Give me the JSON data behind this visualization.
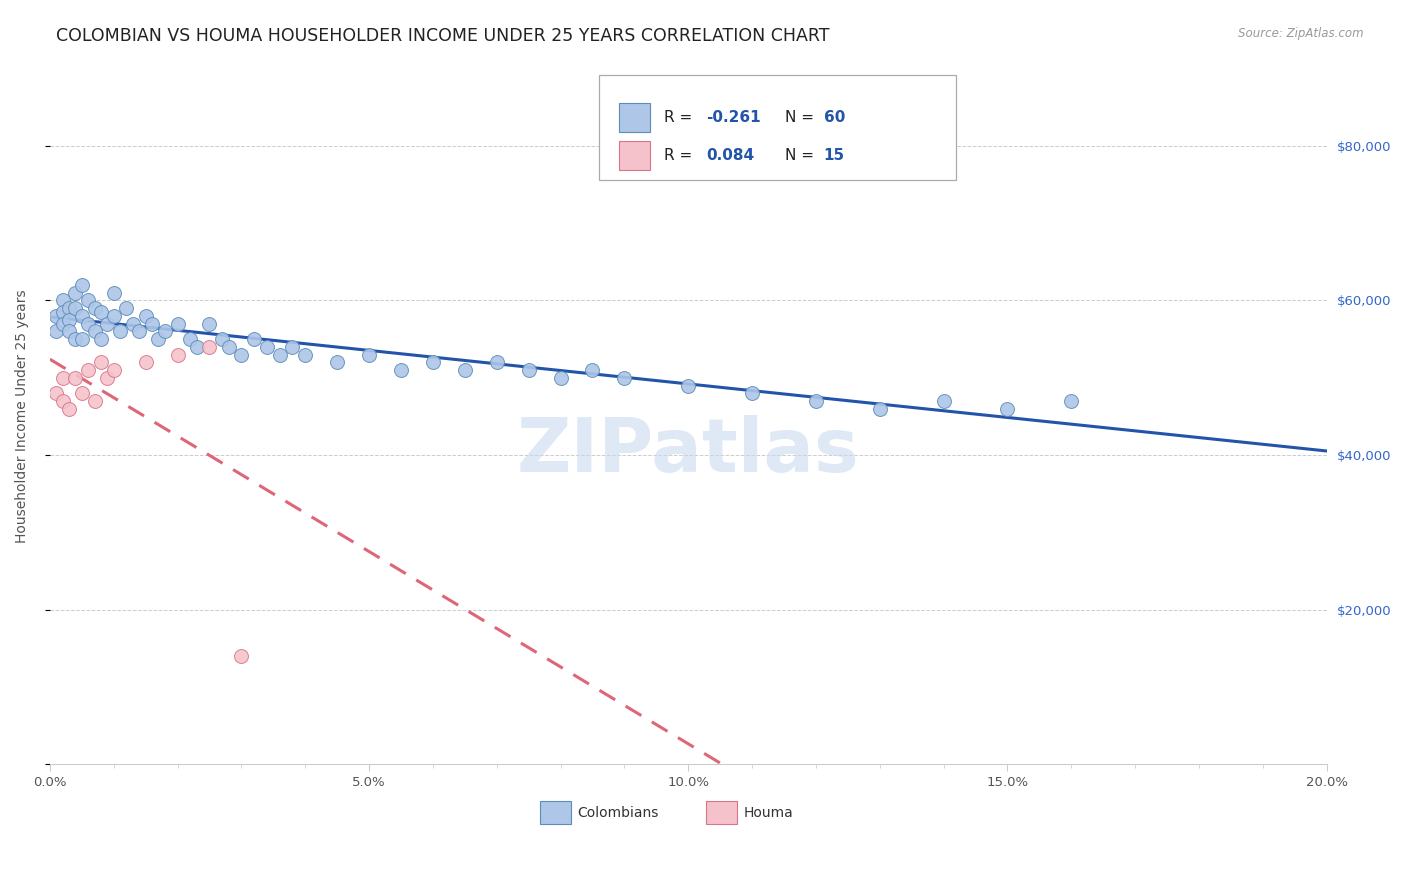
{
  "title": "COLOMBIAN VS HOUMA HOUSEHOLDER INCOME UNDER 25 YEARS CORRELATION CHART",
  "source": "Source: ZipAtlas.com",
  "ylabel": "Householder Income Under 25 years",
  "xlim": [
    0.0,
    0.2
  ],
  "ylim": [
    0,
    90000
  ],
  "yticks": [
    0,
    20000,
    40000,
    60000,
    80000
  ],
  "ytick_labels_right": [
    "",
    "$20,000",
    "$40,000",
    "$60,000",
    "$80,000"
  ],
  "xtick_labels": [
    "0.0%",
    "",
    "",
    "",
    "",
    "5.0%",
    "",
    "",
    "",
    "",
    "10.0%",
    "",
    "",
    "",
    "",
    "15.0%",
    "",
    "",
    "",
    "",
    "20.0%"
  ],
  "xticks": [
    0.0,
    0.01,
    0.02,
    0.03,
    0.04,
    0.05,
    0.06,
    0.07,
    0.08,
    0.09,
    0.1,
    0.11,
    0.12,
    0.13,
    0.14,
    0.15,
    0.16,
    0.17,
    0.18,
    0.19,
    0.2
  ],
  "xtick_major": [
    0.0,
    0.05,
    0.1,
    0.15,
    0.2
  ],
  "xtick_major_labels": [
    "0.0%",
    "5.0%",
    "10.0%",
    "15.0%",
    "20.0%"
  ],
  "legend_r_colombians": "-0.261",
  "legend_n_colombians": "60",
  "legend_r_houma": "0.084",
  "legend_n_houma": "15",
  "colombian_color": "#aec6e8",
  "colombian_edge_color": "#5b8db8",
  "houma_color": "#f5c2cb",
  "houma_edge_color": "#d9748a",
  "trend_colombian_color": "#2255aa",
  "trend_houma_color": "#dd6677",
  "background_color": "#ffffff",
  "grid_color": "#cccccc",
  "watermark_color": "#c5d8ee",
  "colombian_x": [
    0.001,
    0.001,
    0.002,
    0.002,
    0.002,
    0.003,
    0.003,
    0.003,
    0.004,
    0.004,
    0.004,
    0.005,
    0.005,
    0.005,
    0.006,
    0.006,
    0.007,
    0.007,
    0.008,
    0.008,
    0.009,
    0.01,
    0.01,
    0.011,
    0.012,
    0.013,
    0.014,
    0.015,
    0.016,
    0.017,
    0.018,
    0.02,
    0.022,
    0.023,
    0.025,
    0.027,
    0.028,
    0.03,
    0.032,
    0.034,
    0.036,
    0.038,
    0.04,
    0.045,
    0.05,
    0.055,
    0.06,
    0.065,
    0.07,
    0.075,
    0.08,
    0.085,
    0.09,
    0.1,
    0.11,
    0.12,
    0.13,
    0.14,
    0.15,
    0.16
  ],
  "colombian_y": [
    58000,
    56000,
    60000,
    58500,
    57000,
    59000,
    57500,
    56000,
    61000,
    59000,
    55000,
    62000,
    58000,
    55000,
    60000,
    57000,
    59000,
    56000,
    58500,
    55000,
    57000,
    61000,
    58000,
    56000,
    59000,
    57000,
    56000,
    58000,
    57000,
    55000,
    56000,
    57000,
    55000,
    54000,
    57000,
    55000,
    54000,
    53000,
    55000,
    54000,
    53000,
    54000,
    53000,
    52000,
    53000,
    51000,
    52000,
    51000,
    52000,
    51000,
    50000,
    51000,
    50000,
    49000,
    48000,
    47000,
    46000,
    47000,
    46000,
    47000
  ],
  "houma_x": [
    0.001,
    0.002,
    0.002,
    0.003,
    0.004,
    0.005,
    0.006,
    0.007,
    0.008,
    0.009,
    0.01,
    0.015,
    0.02,
    0.025,
    0.03
  ],
  "houma_y": [
    48000,
    47000,
    50000,
    46000,
    50000,
    48000,
    51000,
    47000,
    52000,
    50000,
    51000,
    52000,
    53000,
    54000,
    14000
  ],
  "title_fontsize": 12.5,
  "axis_fontsize": 10,
  "tick_fontsize": 9.5,
  "legend_fontsize": 11,
  "marker_size": 100,
  "trend_linewidth": 2.2
}
